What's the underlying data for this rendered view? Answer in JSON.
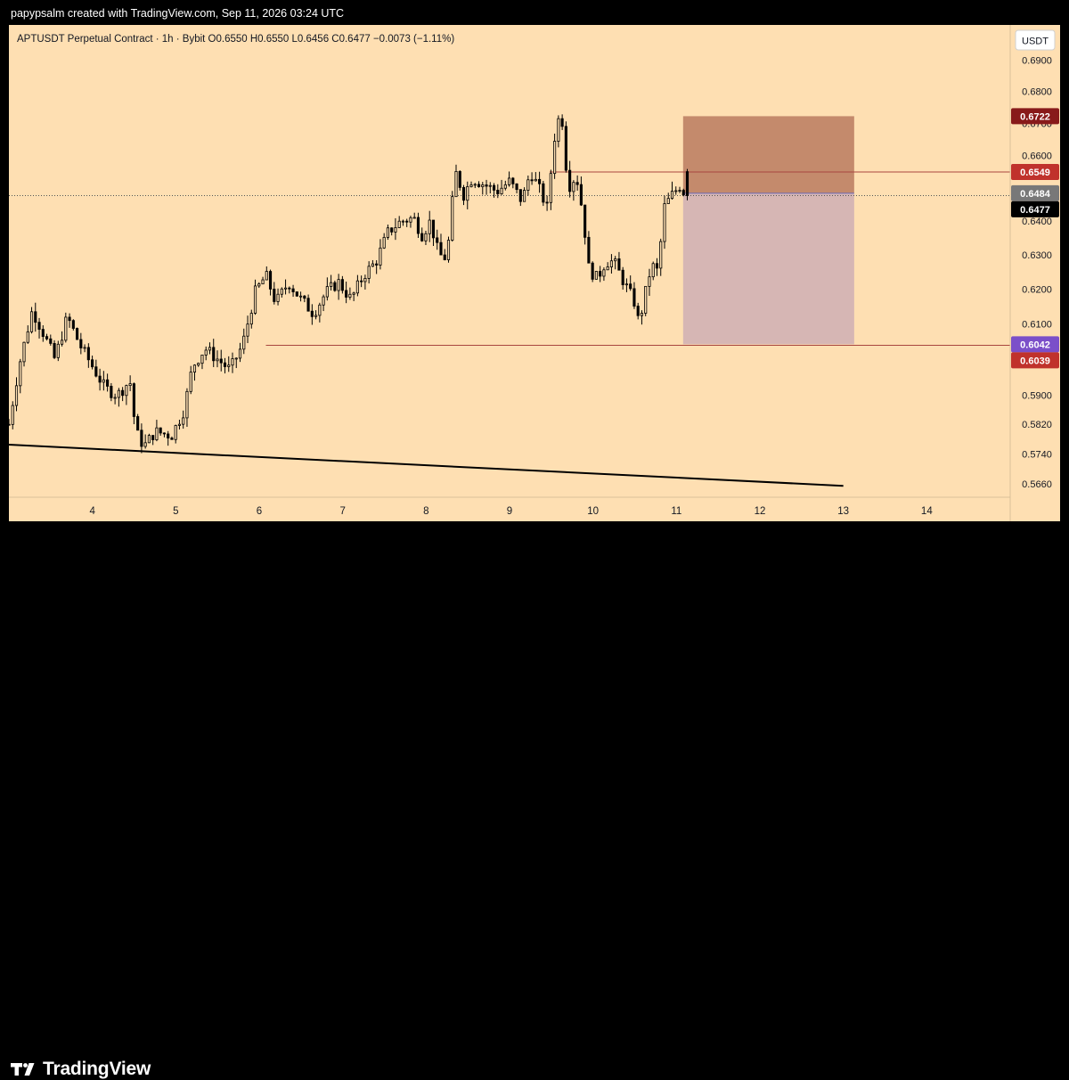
{
  "header": {
    "attribution": "papypsalm created with TradingView.com, Sep 11, 2026 03:24 UTC"
  },
  "footer": {
    "brand": "TradingView",
    "logo_icon": "tradingview-logo-icon"
  },
  "colors": {
    "background": "#fedfb2",
    "candle": "#000000",
    "stop_zone": "#c48a6c",
    "target_zone": "#d6b6b4",
    "trendline": "#000000",
    "level_line": "#a9463f"
  },
  "chart_data": {
    "type": "candlestick",
    "symbol_line": "APTUSDT Perpetual Contract · 1h · Bybit  O0.6550  H0.6550  L0.6456  C0.6477  −0.0073 (−1.11%)",
    "ohlc": {
      "open": 0.655,
      "high": 0.655,
      "low": 0.6456,
      "close": 0.6477,
      "change": -0.0073,
      "change_pct": -1.11
    },
    "currency_button": "USDT",
    "y_scale": "log",
    "y_ticks": [
      {
        "value": 0.566,
        "label": "0.5660"
      },
      {
        "value": 0.574,
        "label": "0.5740"
      },
      {
        "value": 0.582,
        "label": "0.5820"
      },
      {
        "value": 0.59,
        "label": "0.5900"
      },
      {
        "value": 0.61,
        "label": "0.6100"
      },
      {
        "value": 0.62,
        "label": "0.6200"
      },
      {
        "value": 0.63,
        "label": "0.6300"
      },
      {
        "value": 0.64,
        "label": "0.6400"
      },
      {
        "value": 0.66,
        "label": "0.6600"
      },
      {
        "value": 0.67,
        "label": "0.6700"
      },
      {
        "value": 0.68,
        "label": "0.6800"
      },
      {
        "value": 0.69,
        "label": "0.6900"
      }
    ],
    "x_ticks": [
      {
        "value": 4,
        "label": "4"
      },
      {
        "value": 5,
        "label": "5"
      },
      {
        "value": 6,
        "label": "6"
      },
      {
        "value": 7,
        "label": "7"
      },
      {
        "value": 8,
        "label": "8"
      },
      {
        "value": 9,
        "label": "9"
      },
      {
        "value": 10,
        "label": "10"
      },
      {
        "value": 11,
        "label": "11"
      },
      {
        "value": 12,
        "label": "12"
      },
      {
        "value": 13,
        "label": "13"
      },
      {
        "value": 14,
        "label": "14"
      }
    ],
    "price_labels": [
      {
        "value": 0.6722,
        "label": "0.6722",
        "color": "#881a1a"
      },
      {
        "value": 0.6549,
        "label": "0.6549",
        "color": "#c0322c"
      },
      {
        "value": 0.6484,
        "label": "0.6484",
        "color": "#787878"
      },
      {
        "value": 0.6477,
        "label": "0.6477",
        "color": "#000000"
      },
      {
        "value": 0.6042,
        "label": "0.6042",
        "color": "#7b4fc9"
      },
      {
        "value": 0.6039,
        "label": "0.6039",
        "color": "#c0322c"
      }
    ],
    "short_position": {
      "x_start": 11.08,
      "x_end": 13.13,
      "entry": 0.6484,
      "stop": 0.6722,
      "target": 0.6042
    },
    "horizontal_lines": [
      {
        "value": 0.6549,
        "x_start": 9.48,
        "color": "#a9463f"
      },
      {
        "value": 0.6039,
        "x_start": 6.08,
        "color": "#a9463f"
      }
    ],
    "trendline": {
      "x1": 3.0,
      "y1": 0.5765,
      "x2": 13.0,
      "y2": 0.5655
    },
    "current_price": 0.6477,
    "x_range": [
      3.0,
      15.0
    ],
    "y_range": [
      0.5625,
      0.7015
    ],
    "candle_anchors": [
      [
        3.0,
        0.582
      ],
      [
        3.12,
        0.598
      ],
      [
        3.28,
        0.614
      ],
      [
        3.4,
        0.608
      ],
      [
        3.55,
        0.6
      ],
      [
        3.7,
        0.612
      ],
      [
        3.85,
        0.604
      ],
      [
        4.0,
        0.598
      ],
      [
        4.15,
        0.592
      ],
      [
        4.3,
        0.59
      ],
      [
        4.45,
        0.594
      ],
      [
        4.52,
        0.58
      ],
      [
        4.62,
        0.576
      ],
      [
        4.75,
        0.58
      ],
      [
        4.95,
        0.579
      ],
      [
        5.1,
        0.586
      ],
      [
        5.2,
        0.598
      ],
      [
        5.35,
        0.603
      ],
      [
        5.5,
        0.6
      ],
      [
        5.65,
        0.597
      ],
      [
        5.8,
        0.604
      ],
      [
        5.95,
        0.619
      ],
      [
        6.08,
        0.624
      ],
      [
        6.2,
        0.616
      ],
      [
        6.35,
        0.622
      ],
      [
        6.5,
        0.617
      ],
      [
        6.65,
        0.613
      ],
      [
        6.8,
        0.619
      ],
      [
        6.95,
        0.622
      ],
      [
        7.1,
        0.617
      ],
      [
        7.25,
        0.624
      ],
      [
        7.4,
        0.628
      ],
      [
        7.55,
        0.637
      ],
      [
        7.7,
        0.64
      ],
      [
        7.85,
        0.641
      ],
      [
        7.95,
        0.636
      ],
      [
        8.05,
        0.64
      ],
      [
        8.15,
        0.63
      ],
      [
        8.25,
        0.629
      ],
      [
        8.35,
        0.655
      ],
      [
        8.45,
        0.648
      ],
      [
        8.55,
        0.653
      ],
      [
        8.7,
        0.651
      ],
      [
        8.85,
        0.649
      ],
      [
        9.0,
        0.652
      ],
      [
        9.15,
        0.646
      ],
      [
        9.25,
        0.655
      ],
      [
        9.35,
        0.65
      ],
      [
        9.45,
        0.644
      ],
      [
        9.55,
        0.668
      ],
      [
        9.62,
        0.674
      ],
      [
        9.7,
        0.65
      ],
      [
        9.8,
        0.654
      ],
      [
        9.88,
        0.642
      ],
      [
        9.95,
        0.626
      ],
      [
        10.05,
        0.623
      ],
      [
        10.15,
        0.628
      ],
      [
        10.25,
        0.628
      ],
      [
        10.35,
        0.623
      ],
      [
        10.5,
        0.616
      ],
      [
        10.55,
        0.61
      ],
      [
        10.7,
        0.627
      ],
      [
        10.78,
        0.625
      ],
      [
        10.85,
        0.644
      ],
      [
        10.95,
        0.648
      ],
      [
        11.05,
        0.651
      ],
      [
        11.1,
        0.648
      ],
      [
        11.13,
        0.6477
      ]
    ]
  }
}
